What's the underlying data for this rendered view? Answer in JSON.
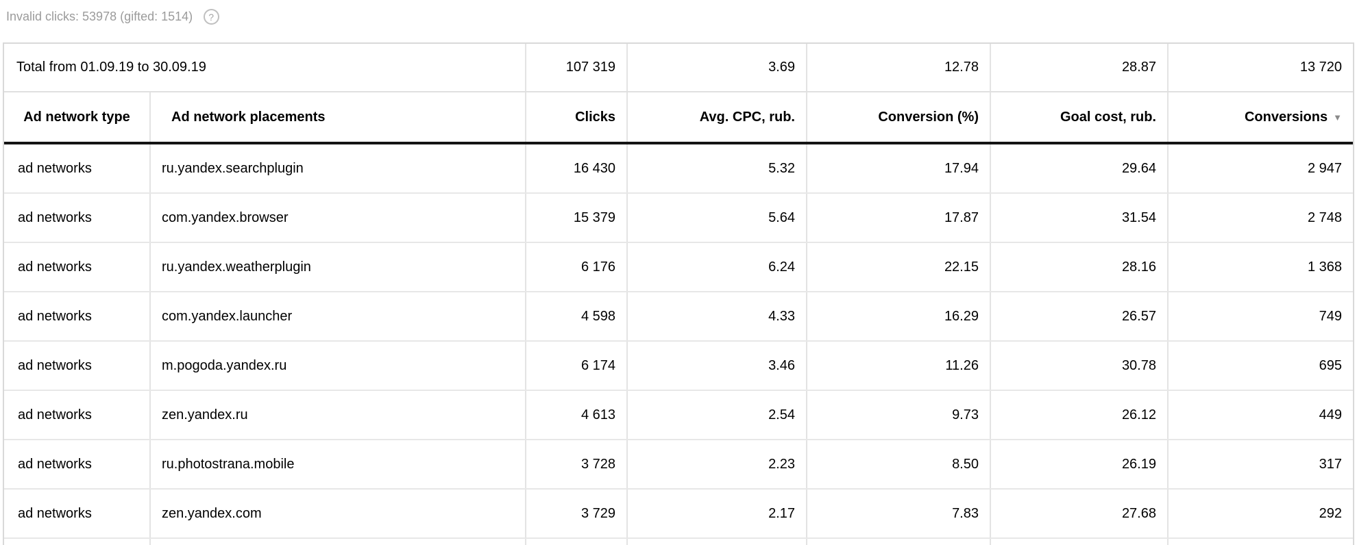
{
  "page": {
    "invalid_clicks_label": "Invalid clicks: 53978 (gifted: 1514)",
    "help_icon_glyph": "?"
  },
  "table": {
    "total_row": {
      "label": "Total from 01.09.19 to 30.09.19",
      "clicks": "107 319",
      "avg_cpc": "3.69",
      "conversion": "12.78",
      "goal_cost": "28.87",
      "conversions": "13 720"
    },
    "headers": {
      "type": "Ad network type",
      "placements": "Ad network placements",
      "clicks": "Clicks",
      "avg_cpc": "Avg. CPC, rub.",
      "conversion": "Conversion (%)",
      "goal_cost": "Goal cost, rub.",
      "conversions": "Conversions",
      "sort_icon": "▼"
    },
    "rows": [
      {
        "type": "ad networks",
        "placement": "ru.yandex.searchplugin",
        "clicks": "16 430",
        "avg_cpc": "5.32",
        "conversion": "17.94",
        "goal_cost": "29.64",
        "conversions": "2 947"
      },
      {
        "type": "ad networks",
        "placement": "com.yandex.browser",
        "clicks": "15 379",
        "avg_cpc": "5.64",
        "conversion": "17.87",
        "goal_cost": "31.54",
        "conversions": "2 748"
      },
      {
        "type": "ad networks",
        "placement": "ru.yandex.weatherplugin",
        "clicks": "6 176",
        "avg_cpc": "6.24",
        "conversion": "22.15",
        "goal_cost": "28.16",
        "conversions": "1 368"
      },
      {
        "type": "ad networks",
        "placement": "com.yandex.launcher",
        "clicks": "4 598",
        "avg_cpc": "4.33",
        "conversion": "16.29",
        "goal_cost": "26.57",
        "conversions": "749"
      },
      {
        "type": "ad networks",
        "placement": "m.pogoda.yandex.ru",
        "clicks": "6 174",
        "avg_cpc": "3.46",
        "conversion": "11.26",
        "goal_cost": "30.78",
        "conversions": "695"
      },
      {
        "type": "ad networks",
        "placement": "zen.yandex.ru",
        "clicks": "4 613",
        "avg_cpc": "2.54",
        "conversion": "9.73",
        "goal_cost": "26.12",
        "conversions": "449"
      },
      {
        "type": "ad networks",
        "placement": "ru.photostrana.mobile",
        "clicks": "3 728",
        "avg_cpc": "2.23",
        "conversion": "8.50",
        "goal_cost": "26.19",
        "conversions": "317"
      },
      {
        "type": "ad networks",
        "placement": "zen.yandex.com",
        "clicks": "3 729",
        "avg_cpc": "2.17",
        "conversion": "7.83",
        "goal_cost": "27.68",
        "conversions": "292"
      }
    ]
  },
  "colors": {
    "border_light": "#e3e3e3",
    "border_outer": "#d9d9d9",
    "header_underline": "#141414",
    "muted_text": "#9b9b9b",
    "text": "#000000"
  }
}
